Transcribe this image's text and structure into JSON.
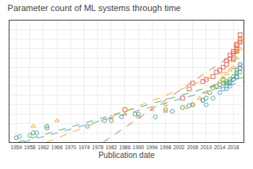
{
  "chart_data": {
    "type": "scatter",
    "title": "Parameter count of ML systems through time",
    "x_label": "Publication date",
    "log": "y",
    "grid": true,
    "tick_labels": "x",
    "xlim": [
      1952,
      2021
    ],
    "ylim": [
      100.0,
      1000000000000000.0
    ],
    "xticks": [
      1954,
      1958,
      1962,
      1966,
      1970,
      1974,
      1978,
      1982,
      1986,
      1990,
      1994,
      1998,
      2002,
      2006,
      2010,
      2014,
      2018
    ],
    "yticks": [
      100.0,
      1000.0,
      10000.0,
      100000.0,
      1000000.0,
      10000000.0,
      100000000.0,
      1000000000.0,
      10000000000.0,
      100000000000.0,
      1000000000000.0,
      10000000000000.0,
      100000000000000.0,
      1000000000000000.0
    ],
    "series": [
      {
        "type": "scatter",
        "color": "#e05a4f",
        "marker": "square",
        "x": [
          1986,
          2003,
          2005,
          2006,
          2009,
          2010,
          2012,
          2013,
          2014,
          2015,
          2016,
          2016,
          2017,
          2017,
          2018,
          2018,
          2018,
          2019,
          2019,
          2019,
          2019,
          2020,
          2020,
          2020
        ],
        "values": [
          300000.0,
          5000000.0,
          50000000.0,
          200000000.0,
          300000000.0,
          500000000.0,
          1000000000.0,
          3000000000.0,
          5000000000.0,
          10000000000.0,
          20000000000.0,
          50000000000.0,
          80000000000.0,
          200000000000.0,
          500000000000.0,
          300000000000.0,
          80000000000.0,
          1000000000000.0,
          500000000000.0,
          2000000000000.0,
          3000000000000.0,
          10000000000000.0,
          5000000000000.0,
          30000000000000.0
        ]
      },
      {
        "type": "scatter",
        "color": "#4daa4d",
        "marker": "circle",
        "x": [
          1954,
          1958,
          1959,
          1963,
          1982,
          1989,
          1998,
          2003,
          2006,
          2009,
          2010,
          2011,
          2012,
          2013,
          2014,
          2015,
          2015,
          2016,
          2016,
          2017,
          2017,
          2018,
          2018,
          2019,
          2019,
          2019,
          2020,
          2020,
          2020
        ],
        "values": [
          300.0,
          500.0,
          1000.0,
          5000.0,
          20000.0,
          100000.0,
          300000.0,
          500000.0,
          1000000.0,
          3000000.0,
          5000000.0,
          20000000.0,
          60000000.0,
          100000000.0,
          140000000.0,
          500000000.0,
          200000000.0,
          300000000.0,
          200000000.0,
          500000000.0,
          300000000.0,
          1000000000.0,
          500000000.0,
          2000000000.0,
          5000000000.0,
          1000000000.0,
          3000000000.0,
          8000000000.0,
          20000000000.0
        ]
      },
      {
        "type": "scatter",
        "color": "#f5a623",
        "marker": "triangle-up",
        "x": [
          1959,
          1966,
          1982,
          1986,
          1990,
          1994,
          1998,
          1998,
          2004,
          2006,
          2008,
          2010,
          2012,
          2014,
          2015,
          2016,
          2017,
          2018,
          2018,
          2019,
          2019,
          2020,
          2020,
          2020
        ],
        "values": [
          5000.0,
          20000.0,
          50000.0,
          100000.0,
          50000.0,
          300000.0,
          200000.0,
          1000000.0,
          500000.0,
          1000000.0,
          5000000.0,
          20000000.0,
          100000000.0,
          300000000.0,
          800000000.0,
          2000000000.0,
          5000000000.0,
          10000000000.0,
          50000000000.0,
          100000000000.0,
          500000000000.0,
          1000000000000.0,
          5000000000000.0,
          10000000000000.0
        ]
      },
      {
        "type": "scatter",
        "color": "#4b9cd3",
        "marker": "circle",
        "x": [
          1955,
          1960,
          1963,
          1975,
          1980,
          1985,
          1990,
          1995,
          2000,
          2005,
          2009,
          2010,
          2012,
          2014,
          2015,
          2016,
          2016,
          2017,
          2017,
          2018,
          2019,
          2019,
          2020,
          2020
        ],
        "values": [
          400.0,
          1000.0,
          3000.0,
          5000.0,
          20000.0,
          50000.0,
          100000.0,
          50000.0,
          200000.0,
          800000.0,
          3000000.0,
          1000000.0,
          5000000.0,
          20000000.0,
          50000000.0,
          100000000.0,
          50000000.0,
          200000000.0,
          100000000.0,
          500000000.0,
          1000000000.0,
          3000000000.0,
          8000000000.0,
          20000000000.0
        ]
      },
      {
        "type": "line",
        "color": "#e05a4f",
        "line_style": "dashed",
        "x": [
          1979.624,
          2021
        ],
        "values": [
          100,
          1379000000000.0
        ]
      },
      {
        "type": "line",
        "color": "#4daa4d",
        "line_style": "dashed",
        "x": [
          1954.43,
          2021
        ],
        "values": [
          100,
          849600000.0
        ]
      },
      {
        "type": "line",
        "color": "#f5a623",
        "line_style": "dashed",
        "x": [
          1963.011,
          2021
        ],
        "values": [
          100,
          19140000000.0
        ]
      },
      {
        "type": "line",
        "color": "#4b9cd3",
        "line_style": "dashed",
        "x": [
          1956.086,
          2021
        ],
        "values": [
          100,
          303400000.0
        ]
      }
    ]
  }
}
